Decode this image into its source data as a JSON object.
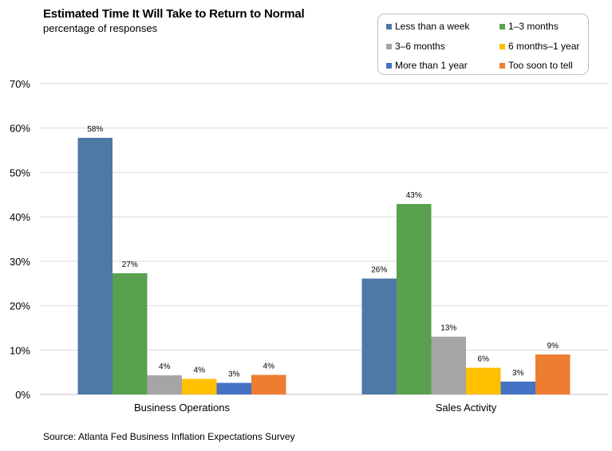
{
  "chart_data": {
    "type": "bar",
    "title": "Estimated Time It Will Take to Return to Normal",
    "subtitle": "percentage of responses",
    "source": "Source: Atlanta Fed Business Inflation Expectations Survey",
    "categories": [
      "Business Operations",
      "Sales Activity"
    ],
    "ylim": [
      0,
      70
    ],
    "yticks": [
      0,
      10,
      20,
      30,
      40,
      50,
      60,
      70
    ],
    "ytick_labels": [
      "0%",
      "10%",
      "20%",
      "30%",
      "40%",
      "50%",
      "60%",
      "70%"
    ],
    "grid": true,
    "legend_position": "top-right",
    "series": [
      {
        "name": "Less than a week",
        "color": "#4e79a7",
        "values": [
          57.8,
          26.1
        ],
        "labels": [
          "58%",
          "26%"
        ]
      },
      {
        "name": "1–3 months",
        "color": "#59a14f",
        "values": [
          27.3,
          42.9
        ],
        "labels": [
          "27%",
          "43%"
        ]
      },
      {
        "name": "3–6 months",
        "color": "#a5a5a5",
        "values": [
          4.3,
          13.0
        ],
        "labels": [
          "4%",
          "13%"
        ]
      },
      {
        "name": "6 months–1 year",
        "color": "#ffc000",
        "values": [
          3.5,
          6.0
        ],
        "labels": [
          "4%",
          "6%"
        ]
      },
      {
        "name": "More than 1 year",
        "color": "#4472c4",
        "values": [
          2.6,
          2.9
        ],
        "labels": [
          "3%",
          "3%"
        ]
      },
      {
        "name": "Too soon to tell",
        "color": "#ed7d31",
        "values": [
          4.4,
          9.0
        ],
        "labels": [
          "4%",
          "9%"
        ]
      }
    ]
  }
}
